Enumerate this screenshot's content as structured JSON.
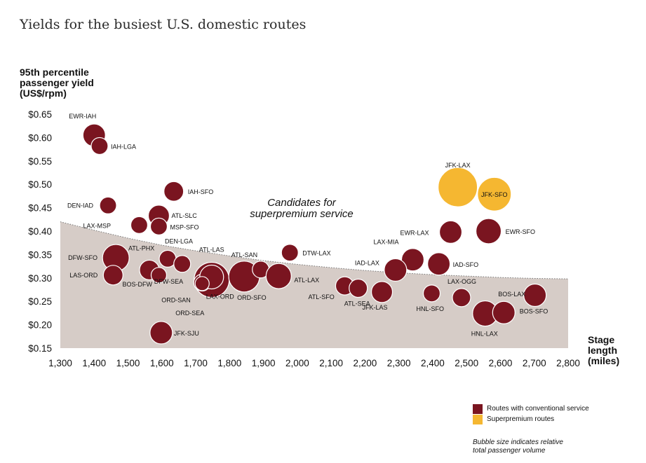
{
  "title": "Yields for the busiest U.S. domestic routes",
  "legend": {
    "items": [
      {
        "label": "Routes with conventional service",
        "color": "#7a1520"
      },
      {
        "label": "Superpremium routes",
        "color": "#f5b731"
      }
    ],
    "note_line1": "Bubble size indicates relative",
    "note_line2": "total passenger volume"
  },
  "chart_data": {
    "type": "scatter",
    "ylabel_lines": [
      "95th percentile",
      "passenger yield",
      "(US$/rpm)"
    ],
    "xlabel_lines": [
      "Stage",
      "length",
      "(miles)"
    ],
    "xlim": [
      1300,
      2800
    ],
    "ylim": [
      0.15,
      0.65
    ],
    "x_ticks": [
      "1,300",
      "1,400",
      "1,500",
      "1,600",
      "1,700",
      "1,800",
      "1,900",
      "2,000",
      "2,100",
      "2,200",
      "2,300",
      "2,400",
      "2,500",
      "2,600",
      "2,700",
      "2,800"
    ],
    "y_ticks": [
      "$0.65",
      "$0.60",
      "$0.55",
      "$0.50",
      "$0.45",
      "$0.40",
      "$0.35",
      "$0.30",
      "$0.25",
      "$0.20",
      "$0.15"
    ],
    "annotation_lines": [
      "Candidates for",
      "superpremium service"
    ],
    "frontier": {
      "x": [
        1300,
        1400,
        1500,
        1600,
        1700,
        1800,
        1900,
        2000,
        2100,
        2200,
        2300,
        2400,
        2500,
        2600,
        2700,
        2800
      ],
      "y": [
        0.42,
        0.402,
        0.385,
        0.37,
        0.358,
        0.347,
        0.337,
        0.329,
        0.322,
        0.316,
        0.311,
        0.307,
        0.304,
        0.301,
        0.299,
        0.298
      ]
    },
    "series": [
      {
        "name": "Routes with conventional service",
        "color": "#7a1520",
        "points": [
          {
            "label": "EWR-IAH",
            "x": 1400,
            "y": 0.605,
            "size": 16
          },
          {
            "label": "IAH-LGA",
            "x": 1416,
            "y": 0.582,
            "size": 12
          },
          {
            "label": "DEN-IAD",
            "x": 1441,
            "y": 0.455,
            "size": 12
          },
          {
            "label": "IAH-SFO",
            "x": 1635,
            "y": 0.485,
            "size": 14
          },
          {
            "label": "ATL-SLC",
            "x": 1591,
            "y": 0.433,
            "size": 15
          },
          {
            "label": "LAX-MSP",
            "x": 1533,
            "y": 0.413,
            "size": 12
          },
          {
            "label": "MSP-SFO",
            "x": 1591,
            "y": 0.41,
            "size": 12
          },
          {
            "label": "DEN-LGA",
            "x": 1617,
            "y": 0.341,
            "size": 12
          },
          {
            "label": "DFW-SFO",
            "x": 1464,
            "y": 0.343,
            "size": 19
          },
          {
            "label": "ATL-PHX",
            "x": 1563,
            "y": 0.317,
            "size": 14
          },
          {
            "label": "LAS-ORD",
            "x": 1456,
            "y": 0.306,
            "size": 14
          },
          {
            "label": "BOS-DFW",
            "x": 1591,
            "y": 0.306,
            "size": 11
          },
          {
            "label": "DFW-SEA",
            "x": 1660,
            "y": 0.33,
            "size": 12
          },
          {
            "label": "ATL-LAS",
            "x": 1747,
            "y": 0.296,
            "size": 25
          },
          {
            "label": "ORD-SAN",
            "x": 1719,
            "y": 0.29,
            "size": 12
          },
          {
            "label": "LAX-ORD",
            "x": 1747,
            "y": 0.302,
            "size": 17
          },
          {
            "label": "ORD-SEA",
            "x": 1719,
            "y": 0.288,
            "size": 10
          },
          {
            "label": "ORD-SFO",
            "x": 1843,
            "y": 0.303,
            "size": 22
          },
          {
            "label": "ATL-SAN",
            "x": 1892,
            "y": 0.318,
            "size": 12
          },
          {
            "label": "ATL-LAX",
            "x": 1945,
            "y": 0.304,
            "size": 18
          },
          {
            "label": "DTW-LAX",
            "x": 1978,
            "y": 0.354,
            "size": 12
          },
          {
            "label": "ATL-SFO",
            "x": 2140,
            "y": 0.283,
            "size": 13
          },
          {
            "label": "ATL-SEA",
            "x": 2180,
            "y": 0.278,
            "size": 13
          },
          {
            "label": "JFK-LAS",
            "x": 2250,
            "y": 0.27,
            "size": 15
          },
          {
            "label": "LAX-MIA",
            "x": 2341,
            "y": 0.339,
            "size": 16
          },
          {
            "label": "IAD-LAX",
            "x": 2290,
            "y": 0.317,
            "size": 16
          },
          {
            "label": "IAD-SFO",
            "x": 2418,
            "y": 0.33,
            "size": 16
          },
          {
            "label": "HNL-SFO",
            "x": 2397,
            "y": 0.267,
            "size": 12
          },
          {
            "label": "LAX-OGG",
            "x": 2485,
            "y": 0.258,
            "size": 13
          },
          {
            "label": "EWR-LAX",
            "x": 2453,
            "y": 0.398,
            "size": 16
          },
          {
            "label": "EWR-SFO",
            "x": 2565,
            "y": 0.4,
            "size": 18
          },
          {
            "label": "HNL-LAX",
            "x": 2555,
            "y": 0.224,
            "size": 18
          },
          {
            "label": "BOS-LAX",
            "x": 2610,
            "y": 0.226,
            "size": 16
          },
          {
            "label": "BOS-SFO",
            "x": 2702,
            "y": 0.263,
            "size": 16
          },
          {
            "label": "JFK-SJU",
            "x": 1598,
            "y": 0.183,
            "size": 16
          }
        ]
      },
      {
        "name": "Superpremium routes",
        "color": "#f5b731",
        "points": [
          {
            "label": "JFK-LAX",
            "x": 2474,
            "y": 0.494,
            "size": 28
          },
          {
            "label": "JFK-SFO",
            "x": 2582,
            "y": 0.479,
            "size": 24
          }
        ]
      }
    ]
  }
}
